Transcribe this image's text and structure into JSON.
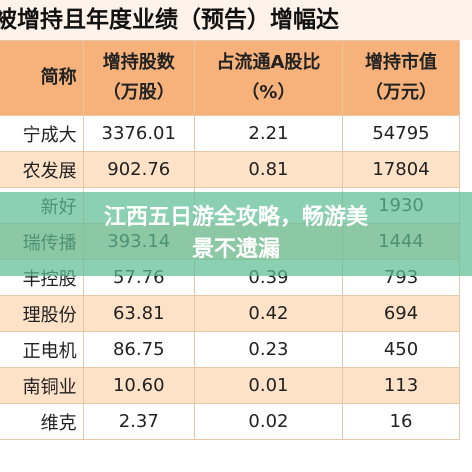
{
  "title": "被增持且年度业绩（预告）增幅达",
  "overlay": {
    "lines": [
      "江西五日游全攻略，畅游美",
      "景不遗漏"
    ]
  },
  "table": {
    "header": [
      [
        "简称"
      ],
      [
        "增持股数",
        "（万股）"
      ],
      [
        "占流通A股比",
        "（%）"
      ],
      [
        "增持市值",
        "（万元）"
      ]
    ],
    "rows": [
      [
        "宁成大",
        "3376.01",
        "2.21",
        "54795"
      ],
      [
        "农发展",
        "902.76",
        "0.81",
        "17804"
      ],
      [
        "新好",
        null,
        null,
        "1930"
      ],
      [
        "瑞传播",
        "393.14",
        null,
        "1444"
      ],
      [
        "丰控股",
        "57.76",
        "0.39",
        "793"
      ],
      [
        "理股份",
        "63.81",
        "0.42",
        "694"
      ],
      [
        "正电机",
        "86.75",
        "0.23",
        "450"
      ],
      [
        "南铜业",
        "10.60",
        "0.01",
        "113"
      ],
      [
        "维克",
        "2.37",
        "0.02",
        "16"
      ]
    ]
  }
}
